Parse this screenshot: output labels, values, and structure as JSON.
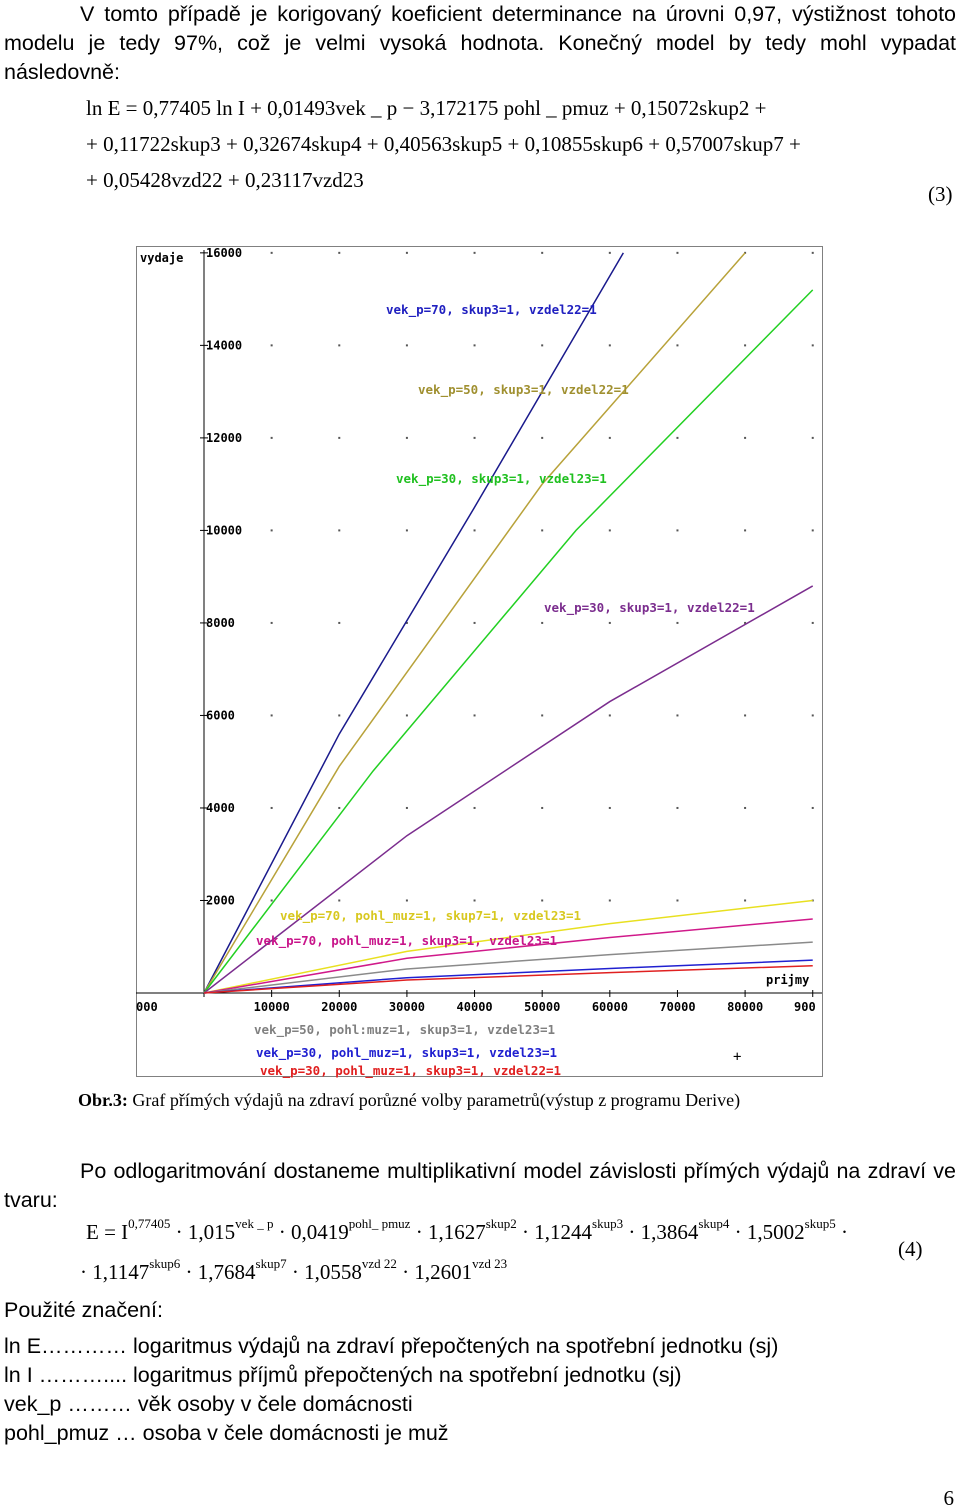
{
  "intro_paragraph": "V tomto případě je korigovaný koeficient determinance na úrovni 0,97, výstižnost tohoto modelu je tedy 97%, což je velmi vysoká hodnota. Konečný model by tedy mohl vypadat následovně:",
  "equation3": {
    "line1": "ln E = 0,77405 ln I + 0,01493vek _ p − 3,172175 pohl _ pmuz + 0,15072skup2 +",
    "line2": "+ 0,11722skup3 + 0,32674skup4 + 0,40563skup5 + 0,10855skup6 + 0,57007skup7 +",
    "line3": "+ 0,05428vzd22 + 0,23117vzd23",
    "number": "(3)"
  },
  "chart_data": {
    "type": "line",
    "title": "",
    "ylabel": "vydaje",
    "xlabel": "prijmy",
    "xlim": [
      -3000,
      90000
    ],
    "ylim": [
      -800,
      16000
    ],
    "y_ticks": [
      "16000",
      "14000",
      "12000",
      "10000",
      "8000",
      "6000",
      "4000",
      "2000"
    ],
    "y_tick_values": [
      16000,
      14000,
      12000,
      10000,
      8000,
      6000,
      4000,
      2000
    ],
    "x_ticks": [
      "000",
      "10000",
      "20000",
      "30000",
      "40000",
      "50000",
      "60000",
      "70000",
      "80000",
      "900"
    ],
    "x_tick_values": [
      0,
      10000,
      20000,
      30000,
      40000,
      50000,
      60000,
      70000,
      80000,
      90000
    ],
    "grid": true,
    "series": [
      {
        "name": "vek_p=70, skup3=1, vzdel22=1",
        "color": "#1a1a8c",
        "points": [
          [
            0,
            0
          ],
          [
            20000,
            5600
          ],
          [
            40000,
            10500
          ],
          [
            62000,
            16000
          ]
        ]
      },
      {
        "name": "vek_p=50, skup3=1, vzdel22=1",
        "color": "#b8a23a",
        "points": [
          [
            0,
            0
          ],
          [
            20000,
            4900
          ],
          [
            50000,
            11000
          ],
          [
            80000,
            16000
          ]
        ]
      },
      {
        "name": "vek_p=30, skup3=1, vzdel23=1",
        "color": "#22d022",
        "points": [
          [
            0,
            0
          ],
          [
            25000,
            4800
          ],
          [
            55000,
            10000
          ],
          [
            90000,
            15200
          ]
        ]
      },
      {
        "name": "vek_p=30, skup3=1, vzdel22=1",
        "color": "#7b2d8e",
        "points": [
          [
            0,
            0
          ],
          [
            30000,
            3400
          ],
          [
            60000,
            6300
          ],
          [
            90000,
            8800
          ]
        ]
      },
      {
        "name": "vek_p=70, pohl_muz=1, skup7=1, vzdel23=1",
        "color": "#e8e020",
        "points": [
          [
            0,
            0
          ],
          [
            30000,
            900
          ],
          [
            60000,
            1500
          ],
          [
            90000,
            2000
          ]
        ]
      },
      {
        "name": "vek_p=70, pohl_muz=1, skup3=1, vzdel23=1",
        "color": "#d0198a",
        "points": [
          [
            0,
            0
          ],
          [
            30000,
            750
          ],
          [
            60000,
            1200
          ],
          [
            90000,
            1600
          ]
        ]
      },
      {
        "name": "vek_p=50, pohl:muz=1, skup3=1, vzdel23=1",
        "color": "#8a8a8a",
        "points": [
          [
            0,
            0
          ],
          [
            30000,
            520
          ],
          [
            60000,
            830
          ],
          [
            90000,
            1100
          ]
        ]
      },
      {
        "name": "vek_p=30, pohl_muz=1, skup3=1, vzdel23=1",
        "color": "#2020d0",
        "points": [
          [
            0,
            0
          ],
          [
            30000,
            330
          ],
          [
            60000,
            530
          ],
          [
            90000,
            710
          ]
        ]
      },
      {
        "name": "vek_p=30, pohl_muz=1, skup3=1, vzdel22=1",
        "color": "#e02020",
        "points": [
          [
            0,
            0
          ],
          [
            30000,
            280
          ],
          [
            60000,
            440
          ],
          [
            90000,
            590
          ]
        ]
      }
    ],
    "annotations": [
      {
        "text": "vek_p=70, skup3=1, vzdel22=1",
        "color": "#2020c0"
      },
      {
        "text": "vek_p=50, skup3=1, vzdel22=1",
        "color": "#a09030"
      },
      {
        "text": "vek_p=30, skup3=1, vzdel23=1",
        "color": "#20c020"
      },
      {
        "text": "vek_p=30, skup3=1, vzdel22=1",
        "color": "#7b2d8e"
      },
      {
        "text": "vek_p=70, pohl_muz=1, skup7=1, vzdel23=1",
        "color": "#d8c820"
      },
      {
        "text": "vek_p=70, pohl_muz=1, skup3=1, vzdel23=1",
        "color": "#c8148a"
      },
      {
        "text": "vek_p=50, pohl:muz=1, skup3=1, vzdel23=1",
        "color": "#808080"
      },
      {
        "text": "vek_p=30, pohl_muz=1, skup3=1, vzdel23=1",
        "color": "#2020d0"
      },
      {
        "text": "vek_p=30, pohl_muz=1, skup3=1, vzdel22=1",
        "color": "#e02020"
      }
    ],
    "cursor_marker": "+"
  },
  "caption": {
    "label": "Obr.3:",
    "text": " Graf přímých výdajů na zdraví porůzné volby parametrů(výstup z programu Derive)"
  },
  "paragraph2": "Po odlogaritmování dostaneme multiplikativní model závislosti přímých výdajů na zdraví ve tvaru:",
  "equation4": {
    "number": "(4)",
    "line1": [
      {
        "base": "E = I",
        "sup": "0,77405"
      },
      {
        "base": " · 1,015",
        "sup": "vek _ p"
      },
      {
        "base": " · 0,0419",
        "sup": "pohl_ pmuz"
      },
      {
        "base": " · 1,1627",
        "sup": "skup2"
      },
      {
        "base": " · 1,1244",
        "sup": "skup3"
      },
      {
        "base": " · 1,3864",
        "sup": "skup4"
      },
      {
        "base": " · 1,5002",
        "sup": "skup5"
      },
      {
        "base": " ·",
        "sup": ""
      }
    ],
    "line2": [
      {
        "base": "· 1,1147",
        "sup": "skup6"
      },
      {
        "base": " · 1,7684",
        "sup": "skup7"
      },
      {
        "base": " · 1,0558",
        "sup": "vzd 22"
      },
      {
        "base": " · 1,2601",
        "sup": "vzd 23"
      }
    ]
  },
  "notation_heading": "Použité značení:",
  "definitions": [
    "ln E………… logaritmus výdajů na zdraví přepočtených na spotřební jednotku (sj)",
    "ln I ……….... logaritmus příjmů přepočtených na spotřební jednotku (sj)",
    "vek_p ……… věk osoby v čele domácnosti",
    "pohl_pmuz … osoba v čele domácnosti je muž"
  ],
  "page_number": "6"
}
